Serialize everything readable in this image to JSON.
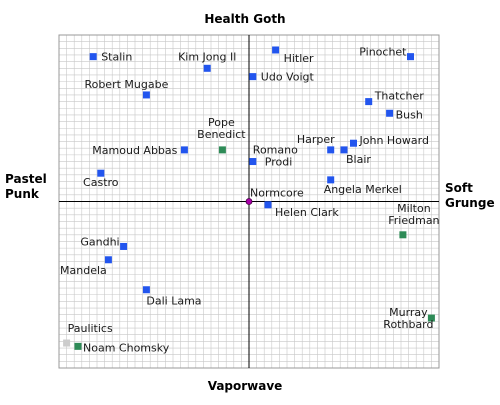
{
  "chart_data": {
    "type": "scatter",
    "title": "",
    "axes": {
      "top": "Health Goth",
      "bottom": "Vaporwave",
      "left": [
        "Pastel",
        "Punk"
      ],
      "right": [
        "Soft",
        "Grunge"
      ]
    },
    "xlim": [
      -10,
      10
    ],
    "ylim": [
      -10,
      10
    ],
    "grid": true,
    "colors": {
      "blue": "#2255ee",
      "green": "#2e8b57",
      "purple": "#aa00aa",
      "gray": "#cccccc",
      "axis": "#000000",
      "grid": "#c8c8c8",
      "frame": "#999999"
    },
    "points": [
      {
        "name": "Stalin",
        "x": -8.2,
        "y": 8.7,
        "color": "blue"
      },
      {
        "name": "Kim Jong Il",
        "x": -2.2,
        "y": 8.0,
        "color": "blue"
      },
      {
        "name": "Hitler",
        "x": 1.4,
        "y": 9.1,
        "color": "blue"
      },
      {
        "name": "Pinochet",
        "x": 8.5,
        "y": 8.7,
        "color": "blue"
      },
      {
        "name": "Udo Voigt",
        "x": 0.2,
        "y": 7.5,
        "color": "blue"
      },
      {
        "name": "Robert Mugabe",
        "x": -5.4,
        "y": 6.4,
        "color": "blue"
      },
      {
        "name": "Thatcher",
        "x": 6.3,
        "y": 6.0,
        "color": "blue"
      },
      {
        "name": "Bush",
        "x": 7.4,
        "y": 5.3,
        "color": "blue"
      },
      {
        "name": "Pope Benedict",
        "x": -1.4,
        "y": 3.1,
        "color": "green"
      },
      {
        "name": "Mamoud Abbas",
        "x": -3.4,
        "y": 3.1,
        "color": "blue"
      },
      {
        "name": "Harper",
        "x": 4.3,
        "y": 3.1,
        "color": "blue"
      },
      {
        "name": "John Howard",
        "x": 5.5,
        "y": 3.5,
        "color": "blue"
      },
      {
        "name": "Blair",
        "x": 5.0,
        "y": 3.1,
        "color": "blue"
      },
      {
        "name": "Romano Prodi",
        "x": 0.2,
        "y": 2.4,
        "color": "blue"
      },
      {
        "name": "Castro",
        "x": -7.8,
        "y": 1.7,
        "color": "blue"
      },
      {
        "name": "Angela Merkel",
        "x": 4.3,
        "y": 1.3,
        "color": "blue"
      },
      {
        "name": "Normcore",
        "x": 0.0,
        "y": 0.0,
        "color": "purple"
      },
      {
        "name": "Helen Clark",
        "x": 1.0,
        "y": -0.2,
        "color": "blue"
      },
      {
        "name": "Milton Friedman",
        "x": 8.1,
        "y": -2.0,
        "color": "green"
      },
      {
        "name": "Gandhi",
        "x": -6.6,
        "y": -2.7,
        "color": "blue"
      },
      {
        "name": "Mandela",
        "x": -7.4,
        "y": -3.5,
        "color": "blue"
      },
      {
        "name": "Dali Lama",
        "x": -5.4,
        "y": -5.3,
        "color": "blue"
      },
      {
        "name": "Murray Rothbard",
        "x": 9.6,
        "y": -7.0,
        "color": "green"
      },
      {
        "name": "Paulitics",
        "x": -9.6,
        "y": -8.5,
        "color": "gray"
      },
      {
        "name": "Noam Chomsky",
        "x": -9.0,
        "y": -8.7,
        "color": "green"
      }
    ]
  }
}
